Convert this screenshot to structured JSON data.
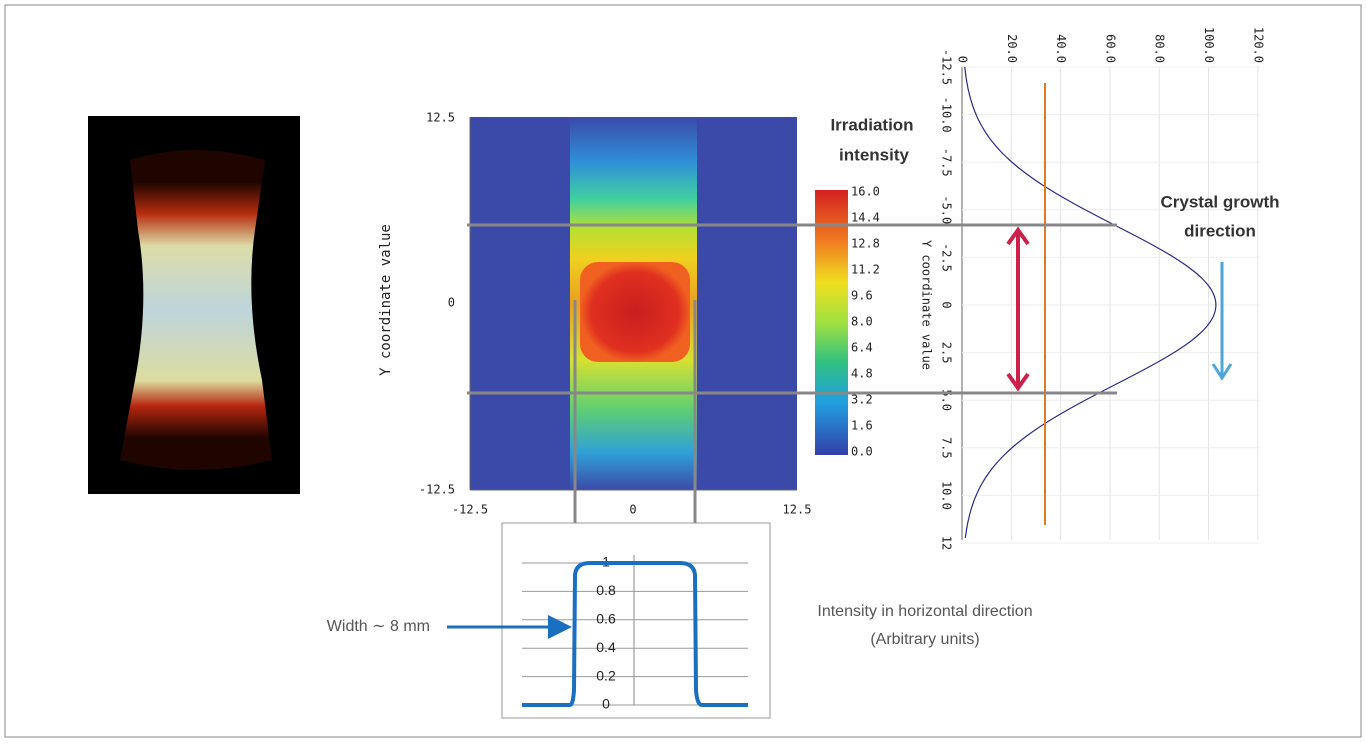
{
  "heatmap": {
    "y_axis_label": "Y coordinate value",
    "x_ticks": [
      "-12.5",
      "0",
      "12.5"
    ],
    "y_ticks": [
      "12.5",
      "0",
      "-12.5"
    ]
  },
  "colorbar": {
    "title_lines": [
      "Irradiation",
      "intensity"
    ],
    "labels": [
      "16.0",
      "14.4",
      "12.8",
      "11.2",
      "9.6",
      "8.0",
      "6.4",
      "4.8",
      "3.2",
      "1.6",
      "0.0"
    ]
  },
  "vertical_profile": {
    "x_ticks": [
      "0",
      "20.0",
      "40.0",
      "60.0",
      "80.0",
      "100.0",
      "120.0"
    ],
    "y_ticks": [
      "-12.5",
      "-10.0",
      "-7.5",
      "-5.0",
      "-2.5",
      "0",
      "2.5",
      "5.0",
      "7.5",
      "10.0",
      "12"
    ],
    "y_axis_label": "Y coordinate value"
  },
  "growth_label": [
    "Crystal growth",
    "direction"
  ],
  "horizontal_profile": {
    "y_ticks": [
      "1",
      "0.8",
      "0.6",
      "0.4",
      "0.2",
      "0"
    ],
    "caption": [
      "Intensity in horizontal direction",
      "(Arbitrary units)"
    ]
  },
  "width_label": "Width ∼ 8 mm"
}
